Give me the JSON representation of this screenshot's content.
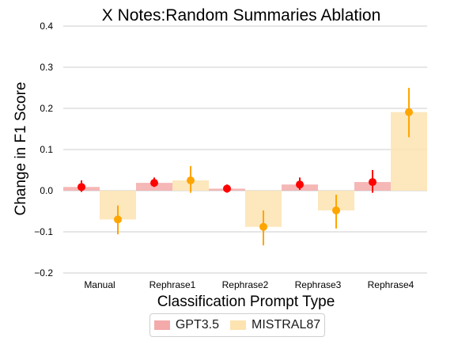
{
  "chart_data": {
    "type": "bar",
    "title": "X Notes:Random Summaries Ablation",
    "xlabel": "Classification Prompt Type",
    "ylabel": "Change in F1 Score",
    "ylim": [
      -0.2,
      0.4
    ],
    "yticks": [
      -0.2,
      -0.1,
      0.0,
      0.1,
      0.2,
      0.3,
      0.4
    ],
    "ytick_labels": [
      "−0.2",
      "−0.1",
      "0.0",
      "0.1",
      "0.2",
      "0.3",
      "0.4"
    ],
    "grid": "horizontal",
    "legend_position": "bottom-center",
    "categories": [
      "Manual",
      "Rephrase1",
      "Rephrase2",
      "Rephrase3",
      "Rephrase4"
    ],
    "series": [
      {
        "name": "GPT3.5",
        "bar_color": "#f4aaaa",
        "point_color": "#ff0000",
        "values": [
          0.009,
          0.019,
          0.005,
          0.015,
          0.021
        ],
        "points": [
          0.009,
          0.019,
          0.005,
          0.015,
          0.021
        ],
        "err_low": [
          -0.003,
          0.009,
          -0.005,
          0.002,
          -0.005
        ],
        "err_high": [
          0.025,
          0.032,
          0.015,
          0.032,
          0.05
        ]
      },
      {
        "name": "MISTRAL87",
        "bar_color": "#fde3b0",
        "point_color": "#ffa500",
        "values": [
          -0.07,
          0.025,
          -0.088,
          -0.048,
          0.191
        ],
        "points": [
          -0.07,
          0.025,
          -0.088,
          -0.048,
          0.191
        ],
        "err_low": [
          -0.106,
          -0.005,
          -0.133,
          -0.092,
          0.13
        ],
        "err_high": [
          -0.036,
          0.06,
          -0.048,
          -0.01,
          0.25
        ]
      }
    ]
  }
}
